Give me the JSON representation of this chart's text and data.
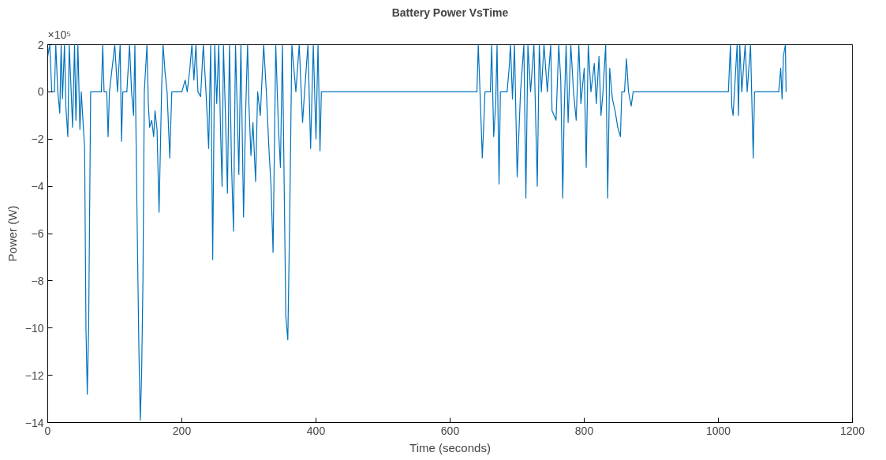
{
  "chart_data": {
    "type": "line",
    "title": "Battery Power VsTime",
    "xlabel": "Time (seconds)",
    "ylabel": "Power (W)",
    "annotations": [
      "×10⁵"
    ],
    "xlim": [
      0,
      1200
    ],
    "xticks": [
      0,
      200,
      400,
      600,
      800,
      1000,
      1200
    ],
    "ylim": [
      -14,
      2
    ],
    "yticks": [
      -14,
      -12,
      -10,
      -8,
      -6,
      -4,
      -2,
      0,
      2
    ],
    "grid": false,
    "series": [
      {
        "color": "#0072bd",
        "x": [
          0,
          3,
          6,
          10,
          12,
          15,
          18,
          20,
          22,
          25,
          27,
          30,
          32,
          35,
          37,
          40,
          42,
          45,
          48,
          50,
          55,
          57,
          59,
          61,
          64,
          80,
          82,
          84,
          88,
          90,
          92,
          100,
          104,
          108,
          110,
          112,
          118,
          122,
          125,
          128,
          130,
          133,
          136,
          138,
          140,
          142,
          144,
          148,
          150,
          152,
          155,
          158,
          160,
          163,
          166,
          170,
          172,
          175,
          178,
          182,
          185,
          200,
          205,
          208,
          212,
          215,
          218,
          221,
          224,
          228,
          232,
          236,
          240,
          243,
          246,
          249,
          252,
          255,
          258,
          260,
          262,
          265,
          268,
          271,
          274,
          277,
          280,
          285,
          288,
          292,
          295,
          298,
          300,
          303,
          306,
          310,
          313,
          317,
          322,
          326,
          330,
          333,
          336,
          340,
          344,
          347,
          350,
          355,
          358,
          361,
          364,
          370,
          375,
          380,
          383,
          388,
          392,
          396,
          400,
          403,
          406,
          408,
          640,
          642,
          645,
          648,
          650,
          652,
          660,
          662,
          665,
          668,
          670,
          673,
          675,
          685,
          688,
          690,
          693,
          696,
          700,
          705,
          710,
          713,
          716,
          720,
          725,
          730,
          733,
          736,
          740,
          745,
          750,
          752,
          758,
          762,
          765,
          768,
          770,
          773,
          776,
          780,
          784,
          788,
          792,
          795,
          800,
          803,
          806,
          810,
          815,
          818,
          822,
          825,
          828,
          832,
          835,
          838,
          842,
          846,
          850,
          854,
          856,
          860,
          863,
          866,
          870,
          873,
          1015,
          1018,
          1020,
          1022,
          1024,
          1028,
          1030,
          1032,
          1035,
          1040,
          1043,
          1048,
          1052,
          1054,
          1090,
          1093,
          1095,
          1097,
          1100,
          1101
        ],
        "values": [
          1.5,
          2,
          0,
          0,
          2,
          0,
          -0.9,
          2,
          -0.3,
          2,
          -0.6,
          -1.9,
          2,
          0,
          -1.5,
          2,
          -1.2,
          2,
          -1.6,
          0,
          -2.4,
          -10,
          -12.8,
          -10,
          0,
          0,
          2,
          0,
          0,
          -1.9,
          0,
          2,
          0,
          2,
          -2.1,
          0,
          0,
          2,
          0,
          -1,
          2,
          -4.9,
          -11,
          -13.9,
          -12,
          -8,
          0,
          2,
          -0.5,
          -1.5,
          -1.2,
          -1.9,
          -0.8,
          -1.6,
          -5.1,
          0.3,
          2,
          0.8,
          0,
          -2.8,
          0,
          0,
          0.5,
          0,
          1,
          2,
          0.5,
          2,
          0,
          -0.2,
          2,
          0,
          -2.4,
          2,
          -7.1,
          2,
          -0.5,
          2,
          -2,
          -4,
          2,
          -1,
          -4.3,
          2,
          -3,
          -5.9,
          2,
          -3.5,
          2,
          -5.3,
          -1,
          2,
          -0.5,
          -2.7,
          -1.3,
          -3.8,
          0,
          -1,
          2,
          0,
          -2.5,
          -4,
          -6.8,
          2,
          -1.5,
          -3.2,
          2,
          -9.5,
          -10.5,
          -5,
          2,
          0,
          2,
          -1.3,
          0,
          2,
          -2.4,
          2,
          -2,
          2,
          -2.5,
          0,
          0,
          2,
          -0.3,
          -2.8,
          -1.5,
          0,
          0,
          2,
          -1.9,
          -0.5,
          2,
          -3.9,
          0,
          0,
          1,
          2,
          -0.3,
          2,
          -3.6,
          0,
          2,
          -4.5,
          2,
          0,
          2,
          -4,
          2,
          0,
          2,
          0,
          2,
          -0.8,
          -1.2,
          2,
          0.5,
          -4.5,
          -1,
          2,
          -1.3,
          2,
          0,
          -1.2,
          2,
          -0.5,
          1,
          -3.2,
          2,
          0,
          1.2,
          -0.5,
          1.5,
          -1,
          0,
          2,
          -4.5,
          1,
          -0.3,
          -0.8,
          -1.5,
          -1.9,
          0,
          0,
          1.4,
          0,
          -0.6,
          0,
          0,
          2,
          -0.6,
          -1,
          0,
          2,
          -1,
          2,
          0,
          2,
          0,
          2,
          -2.8,
          0,
          0,
          1,
          -0.3,
          1.5,
          2,
          0
        ]
      }
    ]
  }
}
